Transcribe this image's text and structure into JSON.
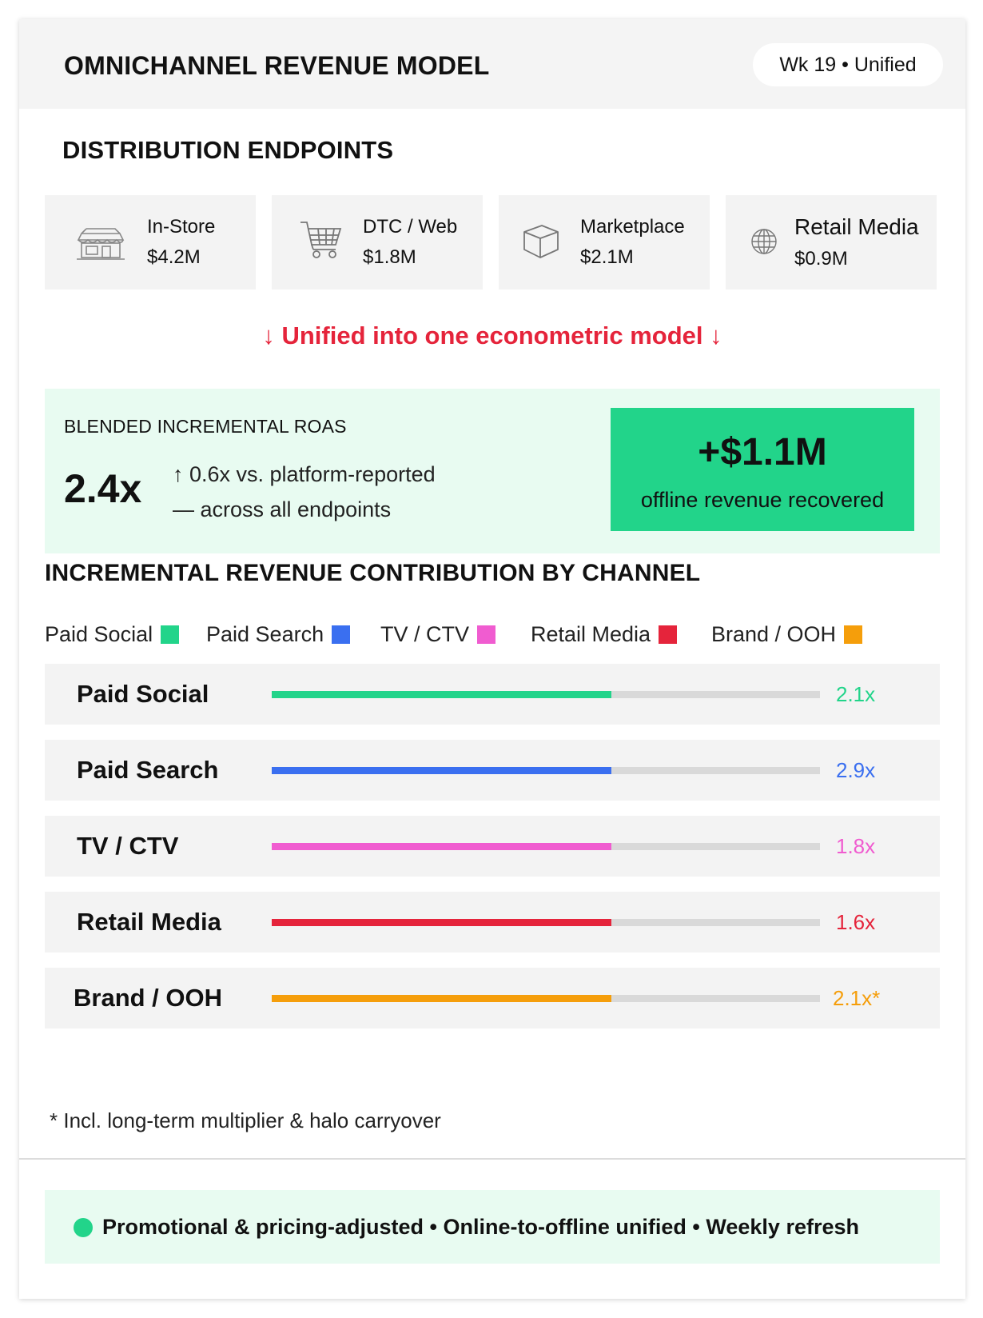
{
  "header": {
    "title": "OMNICHANNEL REVENUE MODEL",
    "badge": "Wk 19 • Unified"
  },
  "endpoints": {
    "title": "DISTRIBUTION ENDPOINTS",
    "items": [
      {
        "label": "In-Store",
        "value": "$4.2M",
        "icon": "storefront-icon"
      },
      {
        "label": "DTC / Web",
        "value": "$1.8M",
        "icon": "shopping-cart-icon"
      },
      {
        "label": "Marketplace",
        "value": "$2.1M",
        "icon": "package-box-icon"
      },
      {
        "label": "Retail Media",
        "value": "$0.9M",
        "icon": "globe-icon"
      }
    ]
  },
  "unified_note": "↓ Unified into one econometric model ↓",
  "roas": {
    "label": "BLENDED INCREMENTAL ROAS",
    "value": "2.4x",
    "note_line1": "↑ 0.6x vs. platform-reported",
    "note_line2": "— across all endpoints",
    "recovered_value": "+$1.1M",
    "recovered_label": "offline revenue recovered"
  },
  "contribution": {
    "title": "INCREMENTAL REVENUE CONTRIBUTION BY CHANNEL",
    "footnote": "* Incl. long-term multiplier & halo carryover"
  },
  "chart_data": {
    "type": "bar",
    "orientation": "horizontal",
    "title": "INCREMENTAL REVENUE CONTRIBUTION BY CHANNEL",
    "categories": [
      "Paid Social",
      "Paid Search",
      "TV / CTV",
      "Retail Media",
      "Brand / OOH"
    ],
    "values": [
      2.1,
      2.9,
      1.8,
      1.6,
      2.1
    ],
    "value_labels": [
      "2.1x",
      "2.9x",
      "1.8x",
      "1.6x",
      "2.1x*"
    ],
    "fill_fraction": [
      0.62,
      0.62,
      0.62,
      0.62,
      0.62
    ],
    "colors": [
      "#22d48a",
      "#3a6ff0",
      "#f05cd0",
      "#e5243b",
      "#f59e0b"
    ],
    "legend": [
      "Paid Social",
      "Paid Search",
      "TV / CTV",
      "Retail Media",
      "Brand / OOH"
    ],
    "legend_position": "top"
  },
  "footer": {
    "text": "Promotional & pricing-adjusted • Online-to-offline unified • Weekly refresh",
    "status_color": "#22d48a"
  }
}
